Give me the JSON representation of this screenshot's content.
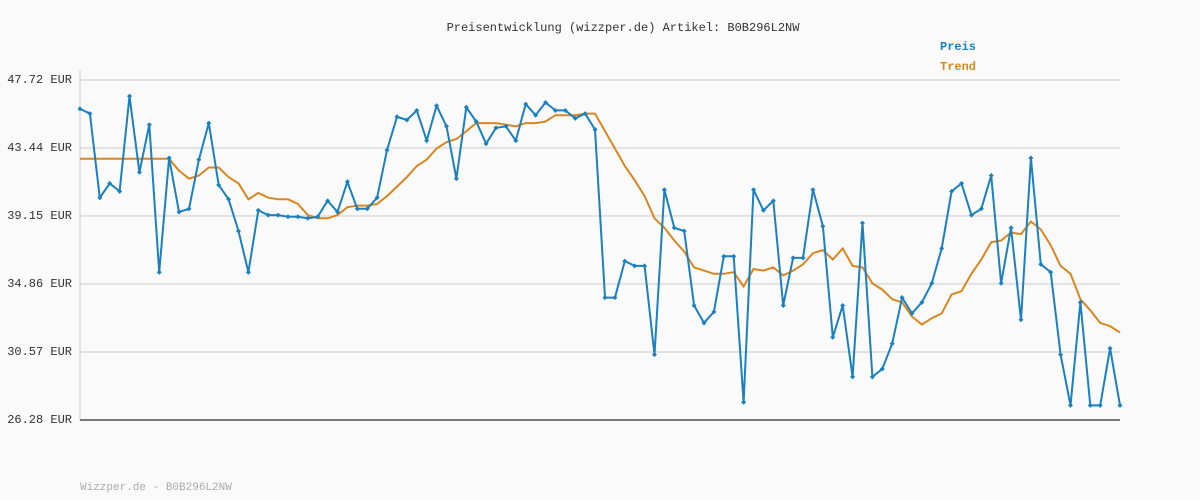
{
  "chart_data": {
    "type": "line",
    "title": "Preisentwicklung (wizzper.de) Artikel: B0B296L2NW",
    "source": "Wizzper.de - B0B296L2NW",
    "categories": [
      null,
      null,
      null,
      null,
      null,
      null,
      null,
      null,
      null,
      null,
      null,
      null,
      null,
      null,
      null,
      null,
      null,
      null,
      null,
      null,
      null,
      null,
      null,
      null,
      null,
      null,
      null,
      null,
      null,
      null,
      null,
      null,
      null,
      null,
      null,
      null,
      null,
      null,
      null,
      null,
      null,
      null,
      null,
      null,
      null,
      null,
      null,
      null,
      null,
      null,
      null,
      null,
      null,
      null,
      null,
      null,
      null,
      null,
      null,
      null,
      null,
      null,
      null,
      null,
      null,
      null,
      null,
      null,
      null,
      null,
      null,
      null,
      null,
      null,
      null,
      null,
      null,
      null,
      null,
      null,
      null,
      null,
      null,
      null,
      null,
      null,
      null,
      null,
      null,
      null,
      null,
      null,
      null,
      null,
      null,
      null,
      null,
      null,
      null,
      null,
      null,
      null,
      null,
      null,
      null,
      null
    ],
    "series": [
      {
        "name": "Preis",
        "color": "#1a80c0",
        "markers": true,
        "values": [
          45.9,
          45.6,
          40.3,
          41.2,
          40.7,
          46.7,
          41.9,
          44.9,
          35.6,
          42.8,
          39.4,
          39.6,
          42.7,
          45.0,
          41.1,
          40.2,
          38.2,
          35.6,
          39.5,
          39.2,
          39.2,
          39.1,
          39.1,
          39.0,
          39.1,
          40.1,
          39.4,
          41.3,
          39.6,
          39.6,
          40.3,
          43.3,
          45.4,
          45.2,
          45.8,
          43.9,
          46.1,
          44.8,
          41.5,
          46.0,
          45.1,
          43.7,
          44.7,
          44.8,
          43.9,
          46.2,
          45.5,
          46.3,
          45.8,
          45.8,
          45.3,
          45.6,
          44.6,
          34.0,
          34.0,
          36.3,
          36.0,
          36.0,
          30.4,
          40.8,
          38.4,
          38.2,
          33.5,
          32.4,
          33.1,
          36.6,
          36.6,
          27.4,
          40.8,
          39.5,
          40.1,
          33.5,
          36.5,
          36.5,
          40.8,
          38.5,
          31.5,
          33.5,
          29.0,
          38.7,
          29.0,
          29.5,
          31.1,
          34.0,
          33.0,
          33.7,
          34.9,
          37.1,
          40.7,
          41.2,
          39.2,
          39.6,
          41.7,
          34.9,
          38.4,
          32.6,
          42.8,
          36.1,
          35.6,
          30.4,
          27.2,
          33.7,
          27.2,
          27.2,
          30.8,
          27.2
        ]
      },
      {
        "name": "Trend",
        "color": "#d9861f",
        "markers": false,
        "values": [
          42.75,
          42.75,
          42.75,
          42.75,
          42.75,
          42.75,
          42.75,
          42.75,
          42.75,
          42.75,
          42.0,
          41.5,
          41.7,
          42.2,
          42.2,
          41.6,
          41.2,
          40.2,
          40.6,
          40.3,
          40.2,
          40.2,
          39.9,
          39.2,
          39.0,
          39.0,
          39.2,
          39.7,
          39.8,
          39.8,
          39.9,
          40.4,
          41.0,
          41.6,
          42.3,
          42.7,
          43.4,
          43.8,
          44.0,
          44.5,
          45.0,
          45.0,
          45.0,
          44.9,
          44.8,
          45.0,
          45.0,
          45.1,
          45.5,
          45.5,
          45.5,
          45.6,
          45.6,
          44.5,
          43.4,
          42.3,
          41.4,
          40.4,
          39.0,
          38.4,
          37.6,
          36.9,
          35.9,
          35.7,
          35.5,
          35.5,
          35.6,
          34.7,
          35.8,
          35.7,
          35.9,
          35.4,
          35.7,
          36.1,
          36.8,
          37.0,
          36.4,
          37.1,
          36.0,
          35.9,
          34.9,
          34.5,
          33.9,
          33.7,
          32.8,
          32.3,
          32.7,
          33.0,
          34.2,
          34.4,
          35.5,
          36.4,
          37.5,
          37.6,
          38.1,
          38.0,
          38.8,
          38.3,
          37.3,
          36.0,
          35.5,
          33.9,
          33.2,
          32.4,
          32.2,
          31.8
        ]
      }
    ],
    "ylim": [
      26.28,
      47.72
    ],
    "yticks": [
      {
        "value": 26.28,
        "label": "26.28 EUR"
      },
      {
        "value": 30.57,
        "label": "30.57 EUR"
      },
      {
        "value": 34.86,
        "label": "34.86 EUR"
      },
      {
        "value": 39.15,
        "label": "39.15 EUR"
      },
      {
        "value": 43.44,
        "label": "43.44 EUR"
      },
      {
        "value": 47.72,
        "label": "47.72 EUR"
      }
    ],
    "grid": true
  }
}
